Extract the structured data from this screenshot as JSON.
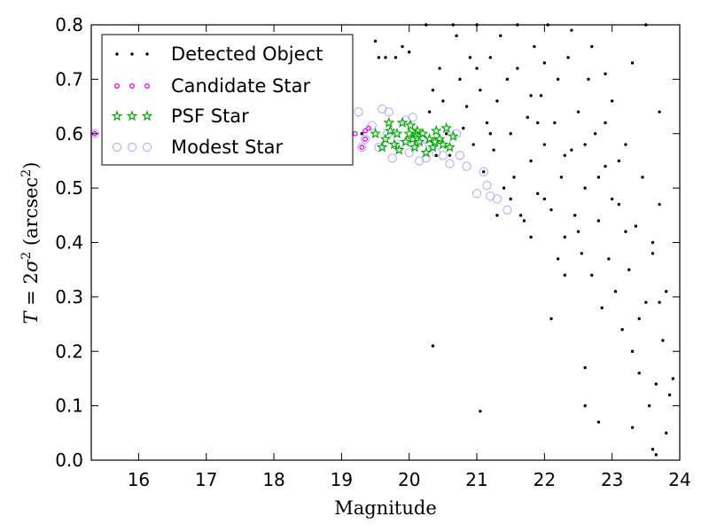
{
  "chart_data": {
    "type": "scatter",
    "xlabel": "Magnitude",
    "ylabel": {
      "prefix": "T",
      "equals": " = 2",
      "sigma": "σ",
      "sup": "2",
      "unit_open": " (arcsec",
      "unit_sup": "2",
      "unit_close": ")"
    },
    "xlim": [
      15.3,
      24.0
    ],
    "ylim": [
      0.0,
      0.8
    ],
    "xticks": [
      16,
      17,
      18,
      19,
      20,
      21,
      22,
      23,
      24
    ],
    "yticks": [
      0.0,
      0.1,
      0.2,
      0.3,
      0.4,
      0.5,
      0.6,
      0.7,
      0.8
    ],
    "grid": false,
    "legend_position": "top-left",
    "series": [
      {
        "name": "Detected Object",
        "marker": "dot",
        "color": "#000000",
        "points": [
          [
            15.9,
            0.6
          ],
          [
            16.2,
            0.6
          ],
          [
            16.6,
            0.6
          ],
          [
            16.9,
            0.6
          ],
          [
            17.3,
            0.6
          ],
          [
            17.7,
            0.6
          ],
          [
            18.1,
            0.6
          ],
          [
            18.4,
            0.6
          ],
          [
            18.8,
            0.6
          ],
          [
            19.1,
            0.6
          ],
          [
            19.3,
            0.6
          ],
          [
            19.5,
            0.77
          ],
          [
            19.55,
            0.74
          ],
          [
            19.65,
            0.74
          ],
          [
            19.8,
            0.74
          ],
          [
            19.9,
            0.76
          ],
          [
            20.0,
            0.75
          ],
          [
            20.25,
            0.8
          ],
          [
            20.35,
            0.68
          ],
          [
            20.3,
            0.64
          ],
          [
            20.4,
            0.56
          ],
          [
            20.45,
            0.72
          ],
          [
            20.5,
            0.66
          ],
          [
            20.55,
            0.6
          ],
          [
            20.6,
            0.56
          ],
          [
            20.65,
            0.8
          ],
          [
            20.7,
            0.78
          ],
          [
            20.75,
            0.7
          ],
          [
            20.8,
            0.61
          ],
          [
            20.85,
            0.65
          ],
          [
            20.9,
            0.74
          ],
          [
            20.95,
            0.58
          ],
          [
            21.0,
            0.8
          ],
          [
            21.05,
            0.68
          ],
          [
            21.1,
            0.53
          ],
          [
            21.15,
            0.62
          ],
          [
            21.2,
            0.74
          ],
          [
            21.25,
            0.57
          ],
          [
            21.3,
            0.66
          ],
          [
            21.35,
            0.78
          ],
          [
            21.4,
            0.5
          ],
          [
            21.45,
            0.7
          ],
          [
            21.5,
            0.6
          ],
          [
            21.55,
            0.52
          ],
          [
            21.6,
            0.72
          ],
          [
            21.65,
            0.45
          ],
          [
            21.7,
            0.44
          ],
          [
            21.75,
            0.63
          ],
          [
            21.8,
            0.55
          ],
          [
            21.85,
            0.76
          ],
          [
            21.9,
            0.49
          ],
          [
            21.95,
            0.67
          ],
          [
            22.0,
            0.58
          ],
          [
            22.05,
            0.8
          ],
          [
            22.1,
            0.46
          ],
          [
            22.15,
            0.62
          ],
          [
            22.2,
            0.7
          ],
          [
            22.25,
            0.52
          ],
          [
            22.3,
            0.41
          ],
          [
            22.35,
            0.74
          ],
          [
            22.4,
            0.57
          ],
          [
            22.45,
            0.45
          ],
          [
            22.5,
            0.64
          ],
          [
            22.55,
            0.38
          ],
          [
            22.6,
            0.5
          ],
          [
            22.65,
            0.7
          ],
          [
            22.7,
            0.34
          ],
          [
            22.75,
            0.6
          ],
          [
            22.8,
            0.44
          ],
          [
            22.85,
            0.28
          ],
          [
            22.9,
            0.54
          ],
          [
            22.95,
            0.37
          ],
          [
            23.0,
            0.66
          ],
          [
            23.05,
            0.31
          ],
          [
            23.1,
            0.47
          ],
          [
            23.15,
            0.24
          ],
          [
            23.2,
            0.58
          ],
          [
            23.25,
            0.35
          ],
          [
            23.3,
            0.2
          ],
          [
            23.35,
            0.43
          ],
          [
            23.4,
            0.16
          ],
          [
            23.45,
            0.52
          ],
          [
            23.5,
            0.29
          ],
          [
            23.55,
            0.1
          ],
          [
            23.6,
            0.38
          ],
          [
            23.65,
            0.14
          ],
          [
            23.7,
            0.47
          ],
          [
            23.75,
            0.22
          ],
          [
            23.8,
            0.05
          ],
          [
            23.85,
            0.12
          ],
          [
            22.1,
            0.26
          ],
          [
            22.3,
            0.34
          ],
          [
            22.6,
            0.17
          ],
          [
            22.6,
            0.1
          ],
          [
            22.8,
            0.07
          ],
          [
            23.3,
            0.06
          ],
          [
            23.6,
            0.02
          ],
          [
            23.65,
            0.01
          ],
          [
            21.05,
            0.09
          ],
          [
            20.35,
            0.21
          ],
          [
            21.0,
            0.72
          ],
          [
            21.2,
            0.6
          ],
          [
            21.3,
            0.45
          ],
          [
            21.6,
            0.8
          ],
          [
            21.8,
            0.67
          ],
          [
            22.0,
            0.73
          ],
          [
            22.4,
            0.79
          ],
          [
            22.7,
            0.76
          ],
          [
            22.9,
            0.71
          ],
          [
            23.3,
            0.73
          ],
          [
            23.5,
            0.8
          ],
          [
            23.7,
            0.64
          ],
          [
            23.9,
            0.15
          ],
          [
            23.8,
            0.31
          ],
          [
            23.7,
            0.29
          ],
          [
            23.6,
            0.4
          ],
          [
            23.4,
            0.26
          ],
          [
            23.2,
            0.42
          ],
          [
            23.0,
            0.48
          ],
          [
            22.8,
            0.52
          ],
          [
            22.5,
            0.42
          ],
          [
            22.2,
            0.37
          ],
          [
            22.0,
            0.48
          ],
          [
            21.8,
            0.41
          ],
          [
            21.5,
            0.48
          ],
          [
            21.9,
            0.62
          ],
          [
            22.3,
            0.56
          ],
          [
            22.6,
            0.58
          ],
          [
            22.9,
            0.62
          ],
          [
            23.1,
            0.55
          ]
        ]
      },
      {
        "name": "Candidate Star",
        "marker": "small-circle",
        "color": "#ee00ee",
        "points": [
          [
            15.35,
            0.6
          ],
          [
            19.2,
            0.6
          ],
          [
            19.3,
            0.575
          ],
          [
            19.35,
            0.59
          ],
          [
            19.35,
            0.605
          ],
          [
            19.4,
            0.61
          ]
        ]
      },
      {
        "name": "PSF Star",
        "marker": "star",
        "color": "#00aa00",
        "points": [
          [
            19.5,
            0.6
          ],
          [
            19.6,
            0.575
          ],
          [
            19.65,
            0.59
          ],
          [
            19.7,
            0.62
          ],
          [
            19.72,
            0.605
          ],
          [
            19.78,
            0.58
          ],
          [
            19.82,
            0.6
          ],
          [
            19.85,
            0.57
          ],
          [
            19.95,
            0.585
          ],
          [
            20.0,
            0.6
          ],
          [
            20.02,
            0.615
          ],
          [
            20.05,
            0.59
          ],
          [
            20.08,
            0.575
          ],
          [
            20.12,
            0.605
          ],
          [
            20.15,
            0.585
          ],
          [
            20.2,
            0.6
          ],
          [
            20.3,
            0.59
          ],
          [
            20.35,
            0.575
          ],
          [
            20.4,
            0.605
          ],
          [
            20.45,
            0.59
          ],
          [
            20.5,
            0.58
          ],
          [
            20.55,
            0.61
          ],
          [
            20.6,
            0.575
          ],
          [
            20.65,
            0.595
          ],
          [
            20.25,
            0.565
          ],
          [
            19.9,
            0.62
          ],
          [
            20.1,
            0.6
          ],
          [
            20.38,
            0.585
          ]
        ]
      },
      {
        "name": "Modest Star",
        "marker": "open-circle",
        "color": "#b0b0ff",
        "points": [
          [
            15.35,
            0.6
          ],
          [
            19.25,
            0.64
          ],
          [
            19.3,
            0.575
          ],
          [
            19.35,
            0.59
          ],
          [
            19.45,
            0.615
          ],
          [
            19.6,
            0.645
          ],
          [
            19.7,
            0.64
          ],
          [
            19.95,
            0.625
          ],
          [
            20.05,
            0.63
          ],
          [
            19.75,
            0.555
          ],
          [
            20.0,
            0.565
          ],
          [
            20.15,
            0.55
          ],
          [
            20.25,
            0.555
          ],
          [
            20.4,
            0.565
          ],
          [
            20.5,
            0.56
          ],
          [
            20.6,
            0.545
          ],
          [
            20.75,
            0.56
          ],
          [
            20.85,
            0.54
          ],
          [
            21.0,
            0.49
          ],
          [
            21.1,
            0.53
          ],
          [
            21.15,
            0.505
          ],
          [
            21.2,
            0.485
          ],
          [
            21.3,
            0.48
          ],
          [
            21.45,
            0.46
          ],
          [
            19.85,
            0.58
          ],
          [
            20.3,
            0.58
          ],
          [
            19.55,
            0.575
          ],
          [
            20.7,
            0.6
          ],
          [
            19.68,
            0.6
          ],
          [
            20.2,
            0.59
          ]
        ]
      }
    ]
  }
}
